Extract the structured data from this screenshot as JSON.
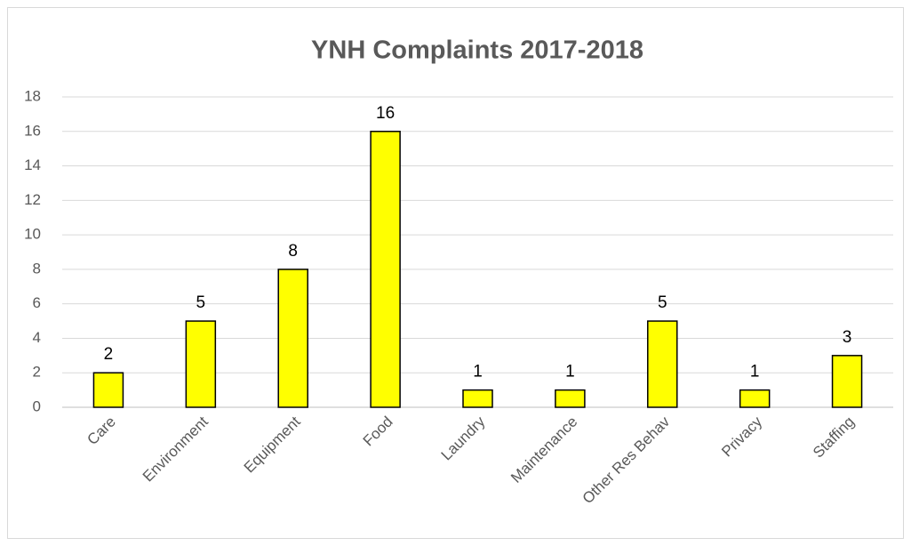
{
  "chart_data": {
    "type": "bar",
    "title": "YNH Complaints 2017-2018",
    "categories": [
      "Care",
      "Environment",
      "Equipment",
      "Food",
      "Laundry",
      "Maintenance",
      "Other Res Behav",
      "Privacy",
      "Staffing"
    ],
    "values": [
      2,
      5,
      8,
      16,
      1,
      1,
      5,
      1,
      3
    ],
    "color": "#ffff00",
    "ylim": [
      0,
      18
    ],
    "yticks": [
      0,
      2,
      4,
      6,
      8,
      10,
      12,
      14,
      16,
      18
    ],
    "grid": true
  }
}
